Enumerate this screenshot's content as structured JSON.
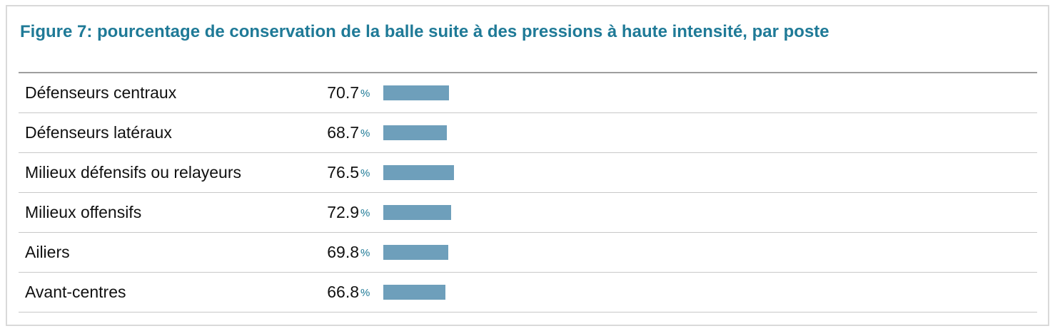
{
  "chart_data": {
    "type": "bar",
    "orientation": "horizontal",
    "title": "Figure 7: pourcentage de conservation de la balle suite à des pressions à haute intensité, par poste",
    "categories": [
      "Défenseurs centraux",
      "Défenseurs latéraux",
      "Milieux défensifs ou relayeurs",
      "Milieux offensifs",
      "Ailiers",
      "Avant-centres"
    ],
    "values": [
      70.7,
      68.7,
      76.5,
      72.9,
      69.8,
      66.8
    ],
    "value_labels": [
      "70.7",
      "68.7",
      "76.5",
      "72.9",
      "69.8",
      "66.8"
    ],
    "unit": "%",
    "xlim": [
      0,
      100
    ],
    "bar_color": "#6e9fbb",
    "accent_color": "#1f7a97"
  }
}
